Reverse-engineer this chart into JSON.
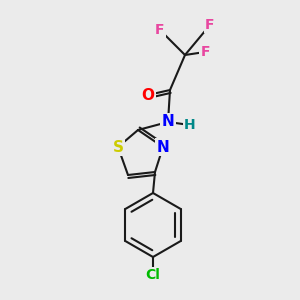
{
  "bg_color": "#ebebeb",
  "bond_color": "#1a1a1a",
  "bond_width": 1.5,
  "atom_colors": {
    "F": "#e847a0",
    "O": "#ff0000",
    "N": "#0000ff",
    "S": "#cccc00",
    "Cl": "#00bb00",
    "H": "#008888"
  },
  "font_size": 10,
  "title": ""
}
